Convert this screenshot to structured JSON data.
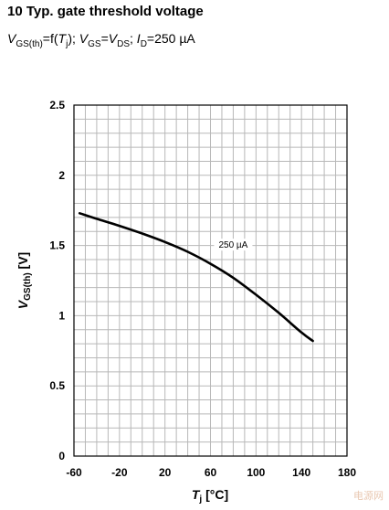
{
  "chart_data": {
    "type": "line",
    "title": "10 Typ. gate threshold voltage",
    "subtitle": {
      "v": "V",
      "v_sub": "GS(th)",
      "eq1": "=f(",
      "t": "T",
      "t_sub": "j",
      "eq2": "); ",
      "v2": "V",
      "v2_sub": "GS",
      "eq3": "=",
      "v3": "V",
      "v3_sub": "DS",
      "eq4": "; ",
      "i": "I",
      "i_sub": "D",
      "eq5": "=250 µA"
    },
    "xlabel": {
      "main": "T",
      "sub": "j",
      "unit": " [°C]"
    },
    "ylabel": {
      "main": "V",
      "sub": "GS(th)",
      "unit": " [V]"
    },
    "xlim": [
      -60,
      180
    ],
    "ylim": [
      0,
      2.5
    ],
    "xticks": [
      -60,
      -20,
      20,
      60,
      100,
      140,
      180
    ],
    "xtick_labels": [
      "-60",
      "-20",
      "20",
      "60",
      "100",
      "140",
      "180"
    ],
    "yticks": [
      0,
      0.5,
      1,
      1.5,
      2,
      2.5
    ],
    "ytick_labels": [
      "0",
      "0.5",
      "1",
      "1.5",
      "2",
      "2.5"
    ],
    "grid": true,
    "series": [
      {
        "name": "250 µA",
        "x": [
          -55,
          -40,
          -20,
          0,
          20,
          40,
          60,
          80,
          100,
          120,
          140,
          150
        ],
        "y": [
          1.73,
          1.69,
          1.64,
          1.585,
          1.525,
          1.455,
          1.37,
          1.27,
          1.15,
          1.02,
          0.88,
          0.82
        ]
      }
    ],
    "annotations": [
      {
        "text": "250 µA",
        "x": 80,
        "y": 1.49
      }
    ]
  },
  "watermark": "电源网"
}
